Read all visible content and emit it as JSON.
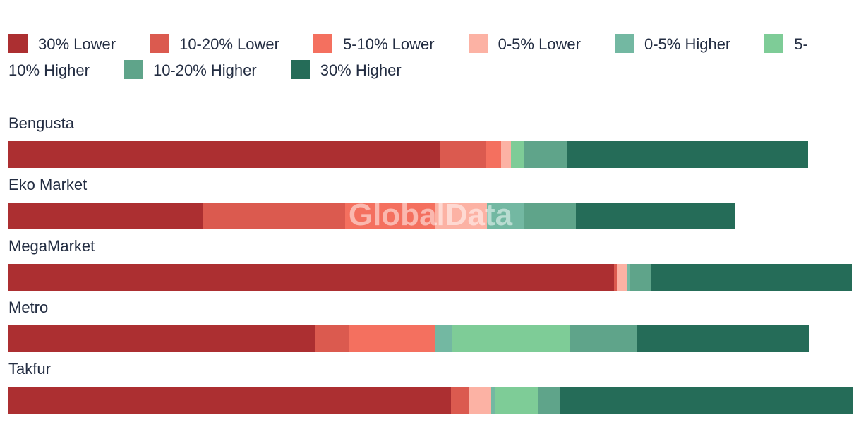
{
  "watermark_text": "GlobalData",
  "colors": {
    "text": "#232D42",
    "lower_30": "#AC2F31",
    "lower_10_20": "#DB5A4F",
    "lower_5_10": "#F4705F",
    "lower_0_5": "#FCB2A4",
    "higher_0_5": "#73B8A2",
    "higher_5_10": "#7ECC97",
    "higher_10_20": "#5FA48A",
    "higher_30": "#256C58"
  },
  "legend": {
    "items": [
      {
        "key": "lower_30",
        "label": "30% Lower",
        "color": "#AC2F31"
      },
      {
        "key": "lower_10_20",
        "label": "10-20% Lower",
        "color": "#DB5A4F"
      },
      {
        "key": "lower_5_10",
        "label": "5-10% Lower",
        "color": "#F4705F"
      },
      {
        "key": "lower_0_5",
        "label": "0-5% Lower",
        "color": "#FCB2A4"
      },
      {
        "key": "higher_0_5",
        "label": "0-5% Higher",
        "color": "#73B8A2"
      },
      {
        "key": "higher_5_10",
        "label": "5-10% Higher",
        "color": "#7ECC97"
      },
      {
        "key": "higher_10_20",
        "label": "10-20% Higher",
        "color": "#5FA48A"
      },
      {
        "key": "higher_30",
        "label": "30% Higher",
        "color": "#256C58"
      }
    ]
  },
  "chart_data": {
    "type": "bar",
    "orientation": "horizontal",
    "stacked": true,
    "title": "",
    "xlabel": "",
    "ylabel": "",
    "axis_visible": false,
    "grid": false,
    "legend_position": "top",
    "values_unit": "percent of track width (longest bar = 100)",
    "xlim": [
      0,
      100
    ],
    "categories": [
      "Bengusta",
      "Eko Market",
      "MegaMarket",
      "Metro",
      "Takfur"
    ],
    "series": [
      {
        "name": "30% Lower",
        "color": "#AC2F31",
        "values": [
          51.1,
          23.1,
          71.7,
          36.3,
          52.4
        ]
      },
      {
        "name": "10-20% Lower",
        "color": "#DB5A4F",
        "values": [
          5.4,
          16.8,
          0.4,
          4.0,
          2.1
        ]
      },
      {
        "name": "5-10% Lower",
        "color": "#F4705F",
        "values": [
          1.9,
          10.6,
          0,
          10.2,
          0
        ]
      },
      {
        "name": "0-5% Lower",
        "color": "#FCB2A4",
        "values": [
          1.1,
          6.2,
          1.2,
          0,
          2.7
        ]
      },
      {
        "name": "0-5% Higher",
        "color": "#73B8A2",
        "values": [
          0,
          4.4,
          0.3,
          2.0,
          0.5
        ]
      },
      {
        "name": "5-10% Higher",
        "color": "#7ECC97",
        "values": [
          1.6,
          0,
          0,
          14.0,
          5.0
        ]
      },
      {
        "name": "10-20% Higher",
        "color": "#5FA48A",
        "values": [
          5.1,
          6.1,
          2.6,
          8.0,
          2.6
        ]
      },
      {
        "name": "30% Higher",
        "color": "#256C58",
        "values": [
          28.5,
          18.8,
          23.7,
          20.3,
          34.7
        ]
      }
    ],
    "bar_totals_pct": [
      94.7,
      86.0,
      99.9,
      94.8,
      100.0
    ]
  }
}
